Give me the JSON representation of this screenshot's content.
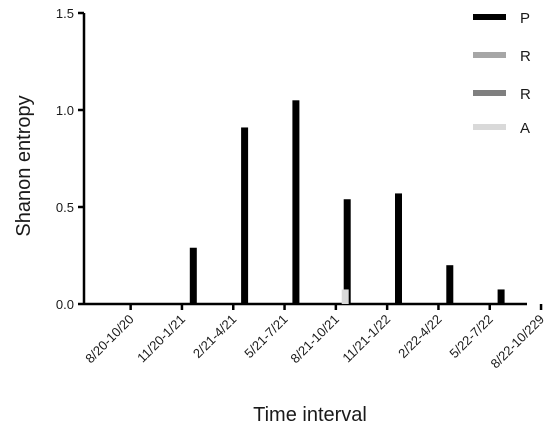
{
  "chart_data": {
    "type": "bar",
    "xlabel": "Time interval",
    "ylabel": "Shanon entropy",
    "ylim": [
      0,
      1.5
    ],
    "yticks": [
      "0.0",
      "0.5",
      "1.0",
      "1.5"
    ],
    "categories": [
      "8/20-10/20",
      "11/20-1/21",
      "2/21-4/21",
      "5/21-7/21",
      "8/21-10/21",
      "11/21-1/22",
      "2/22-4/22",
      "5/22-7/22",
      "8/22-10/229"
    ],
    "grid": false,
    "legend_position": "top-right",
    "series": [
      {
        "name": "P",
        "color": "#000000",
        "values": [
          0,
          0.29,
          0.91,
          1.05,
          0.54,
          0.57,
          0.2,
          0.075,
          0
        ]
      },
      {
        "name": "R",
        "color": "#a6a6a6",
        "values": [
          0,
          0,
          0,
          0,
          0,
          0,
          0,
          0,
          0
        ]
      },
      {
        "name": "R",
        "color": "#7f7f7f",
        "values": [
          0,
          0,
          0,
          0,
          0,
          0,
          0,
          0,
          0
        ]
      },
      {
        "name": "A",
        "color": "#d9d9d9",
        "values": [
          0,
          0,
          0,
          0,
          0.075,
          0,
          0,
          0,
          0
        ]
      }
    ]
  }
}
